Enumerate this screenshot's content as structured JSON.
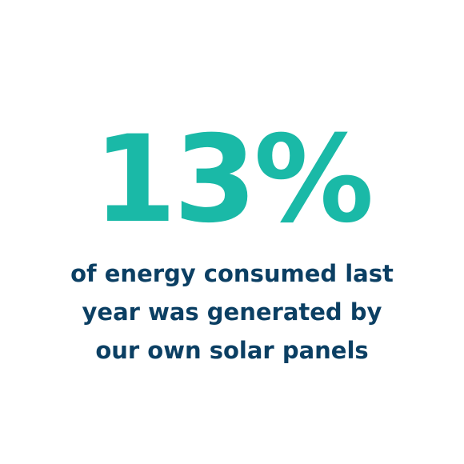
{
  "colors": {
    "accent": "#1ab9a7",
    "text": "#0b3f63",
    "background": "#ffffff"
  },
  "stat": {
    "value": "13%"
  },
  "caption": {
    "lines": [
      "of energy consumed last",
      "year was generated by",
      "our own solar panels"
    ]
  }
}
